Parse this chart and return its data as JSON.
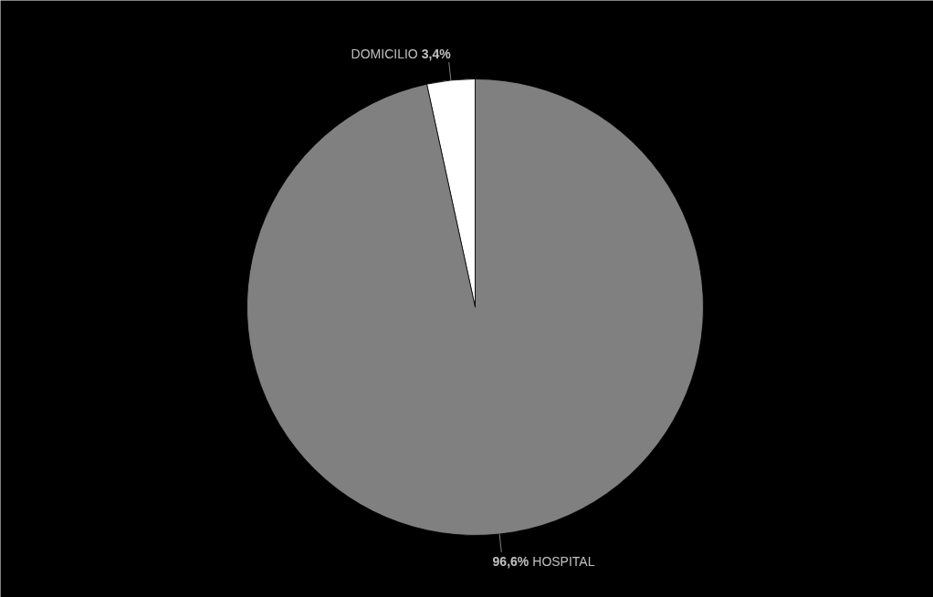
{
  "chart_data": {
    "type": "pie",
    "categories": [
      "DOMICILIO",
      "HOSPITAL"
    ],
    "values": [
      3.4,
      96.6
    ],
    "colors": [
      "#ffffff",
      "#808080"
    ],
    "value_labels": [
      "3,4%",
      "96,6%"
    ],
    "legend": false
  }
}
